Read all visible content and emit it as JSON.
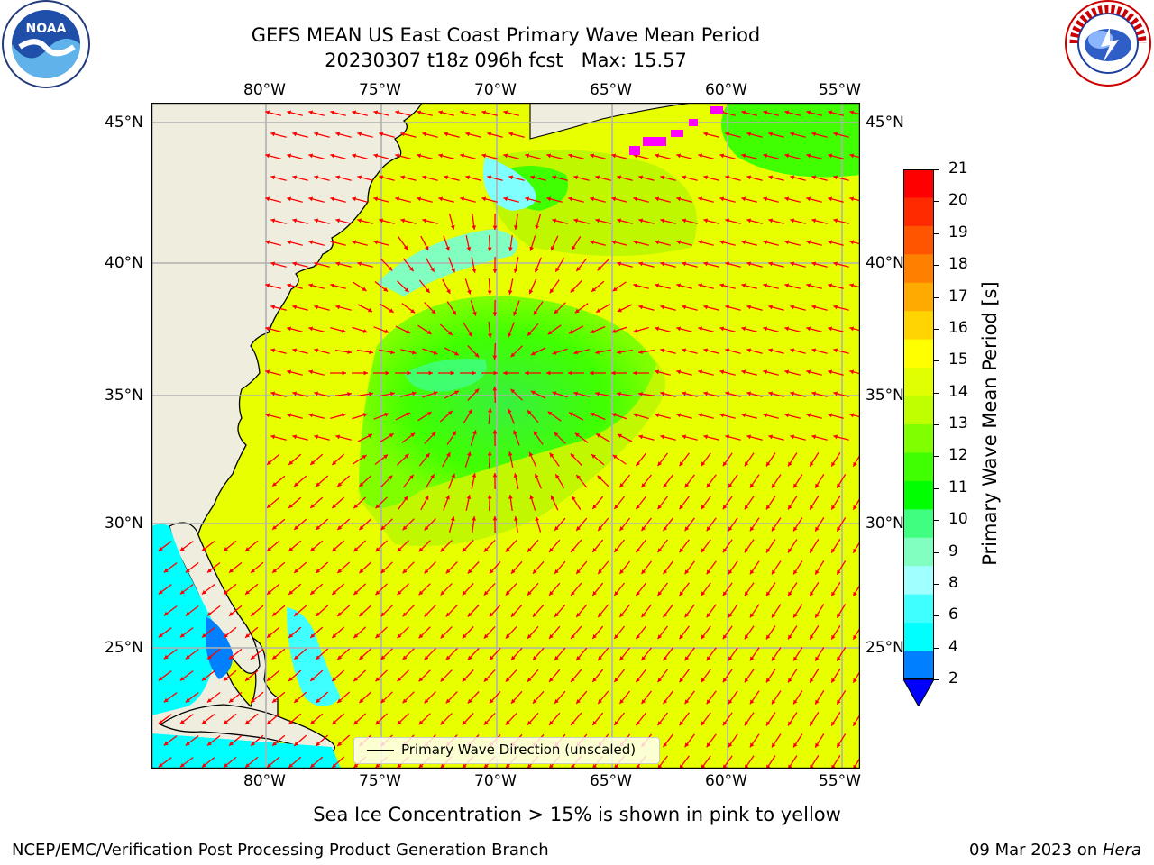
{
  "title": {
    "line1": "GEFS MEAN US East Coast Primary Wave Mean Period",
    "line2": "20230307 t18z 096h fcst   Max: 15.57"
  },
  "map": {
    "lon_labels": [
      "80°W",
      "75°W",
      "70°W",
      "65°W",
      "60°W",
      "55°W"
    ],
    "lat_labels": [
      "45°N",
      "40°N",
      "35°N",
      "30°N",
      "25°N"
    ],
    "field": "primary wave mean period",
    "vector_field": "primary wave direction",
    "arrow_color": "#ff0000",
    "land_color": "#efedde",
    "ice_colors": [
      "#ff00ff",
      "#ffff00"
    ]
  },
  "legend": {
    "label": "Primary Wave Direction (unscaled)"
  },
  "colorbar": {
    "label": "Primary Wave Mean Period [s]",
    "ticks": [
      "21",
      "20",
      "19",
      "18",
      "17",
      "16",
      "15",
      "14",
      "13",
      "12",
      "11",
      "10",
      "9",
      "8",
      "6",
      "4",
      "2"
    ],
    "colors": [
      "#ff0000",
      "#ff2a00",
      "#ff5500",
      "#ff8000",
      "#ffaa00",
      "#ffd400",
      "#ffff00",
      "#e0ff00",
      "#c0ff00",
      "#80ff00",
      "#40ff00",
      "#00ff00",
      "#40ff80",
      "#80ffc0",
      "#a0ffff",
      "#40ffff",
      "#00ffff",
      "#0080ff",
      "#0000ff"
    ]
  },
  "subtitle": "Sea Ice Concentration > 15% is shown in pink to yellow",
  "footer": {
    "left": "NCEP/EMC/Verification Post Processing Product Generation Branch",
    "date": "09 Mar 2023 on ",
    "machine": "Hera"
  },
  "logos": {
    "left": "noaa-logo",
    "right": "nws-logo"
  }
}
